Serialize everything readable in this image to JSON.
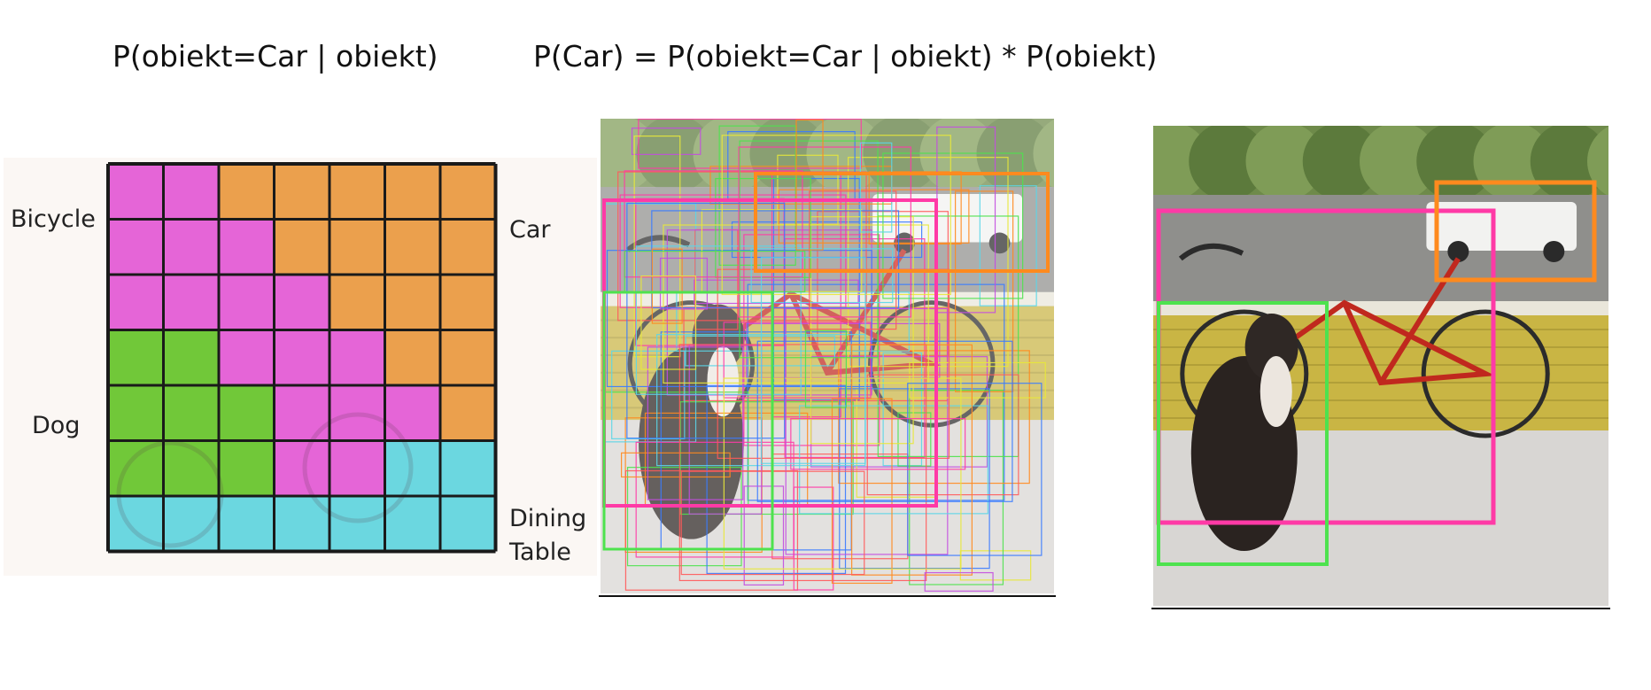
{
  "formulas": {
    "left": "P(obiekt=Car | obiekt)",
    "right": "P(Car) = P(obiekt=Car | obiekt) * P(obiekt)"
  },
  "class_labels": {
    "bicycle": "Bicycle",
    "car": "Car",
    "dog": "Dog",
    "dining_line1": "Dining",
    "dining_line2": "Table"
  },
  "colors": {
    "bicycle": "#e45ad6",
    "car": "#ea9a40",
    "dog": "#66c52a",
    "dining_table": "#5fd6df",
    "grid_line": "#1a1a1a",
    "box_pink": "#ff3aa6",
    "box_orange": "#ff8a1e",
    "box_green": "#4ee24e"
  },
  "grid": {
    "rows": 7,
    "cols": 7,
    "cells": [
      [
        "bicycle",
        "bicycle",
        "car",
        "car",
        "car",
        "car",
        "car"
      ],
      [
        "bicycle",
        "bicycle",
        "bicycle",
        "car",
        "car",
        "car",
        "car"
      ],
      [
        "bicycle",
        "bicycle",
        "bicycle",
        "bicycle",
        "car",
        "car",
        "car"
      ],
      [
        "dog",
        "dog",
        "bicycle",
        "bicycle",
        "bicycle",
        "car",
        "car"
      ],
      [
        "dog",
        "dog",
        "dog",
        "bicycle",
        "bicycle",
        "bicycle",
        "car"
      ],
      [
        "dog",
        "dog",
        "dog",
        "bicycle",
        "bicycle",
        "dining_table",
        "dining_table"
      ],
      [
        "dining_table",
        "dining_table",
        "dining_table",
        "dining_table",
        "dining_table",
        "dining_table",
        "dining_table"
      ]
    ]
  }
}
